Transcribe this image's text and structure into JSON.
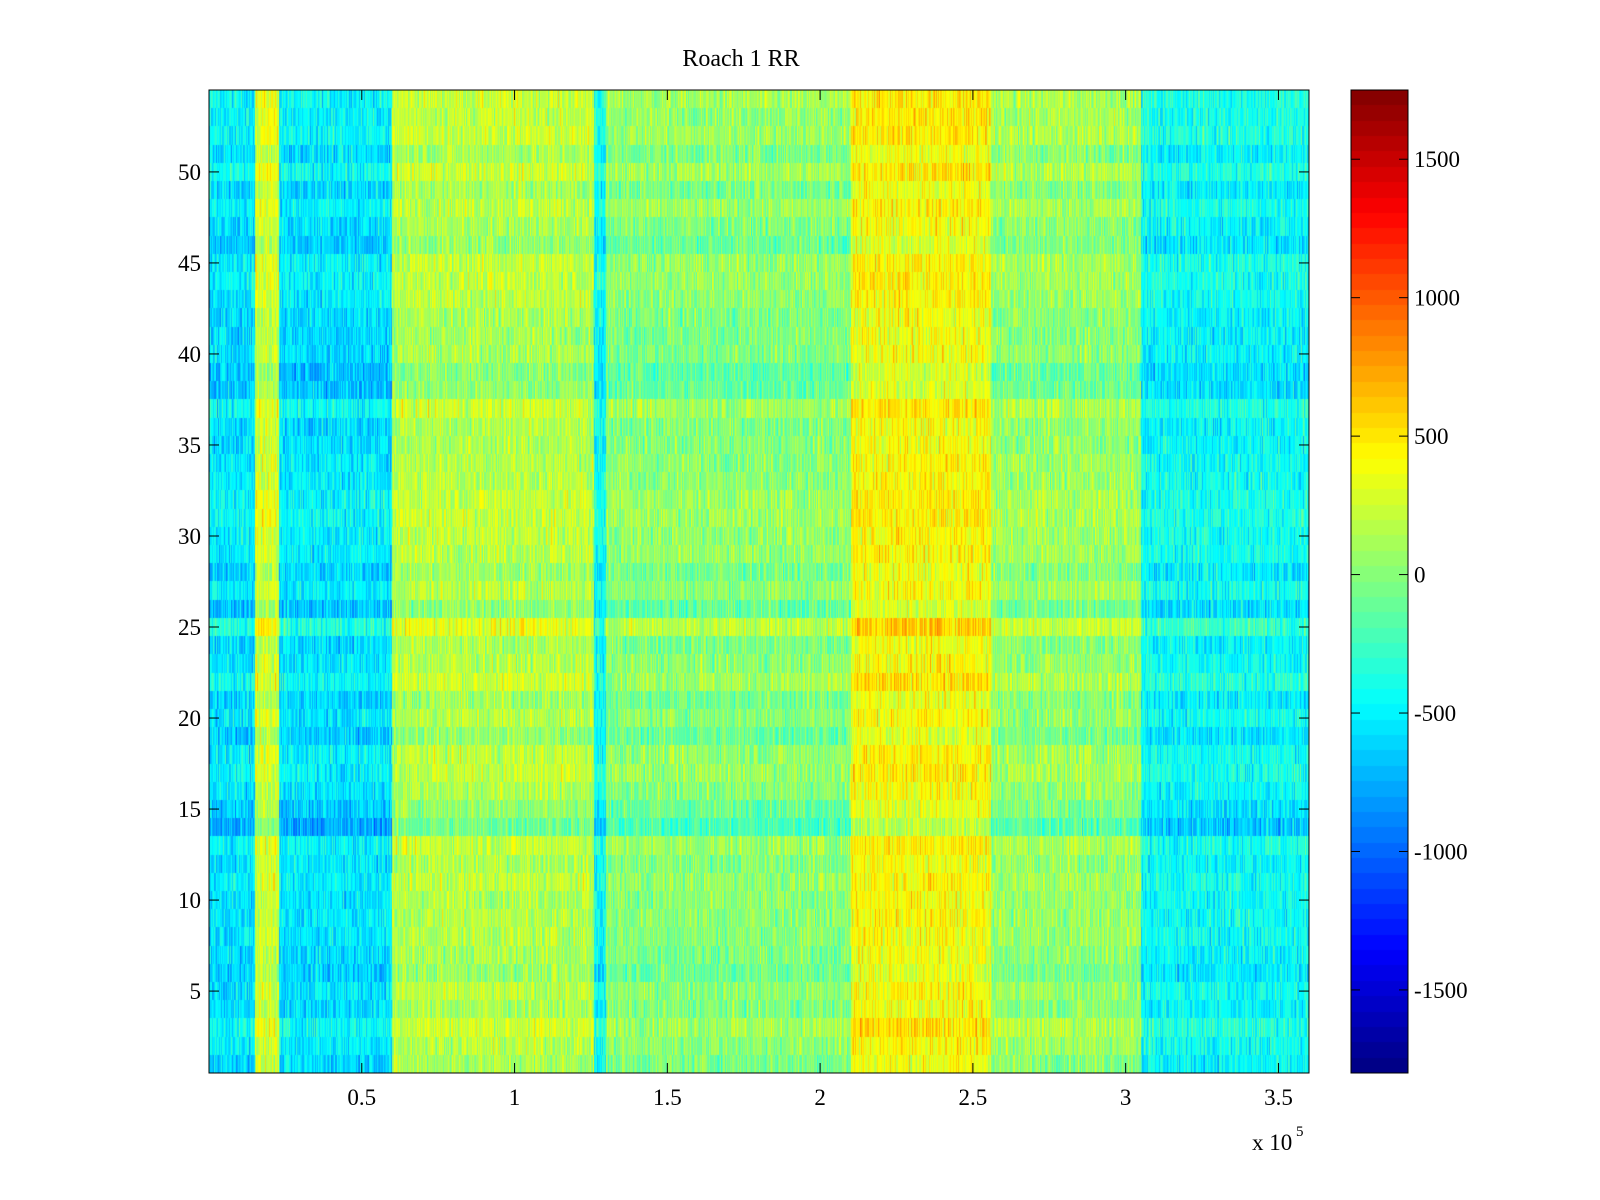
{
  "chart_data": {
    "type": "heatmap",
    "title": "Roach 1 RR",
    "xlabel": "",
    "ylabel": "",
    "x_exponent_label": "x 10",
    "x_exponent": "5",
    "xlim": [
      0,
      3.6
    ],
    "ylim": [
      0.5,
      54.5
    ],
    "x_ticks": [
      0.5,
      1,
      1.5,
      2,
      2.5,
      3,
      3.5
    ],
    "x_tick_labels": [
      "0.5",
      "1",
      "1.5",
      "2",
      "2.5",
      "3",
      "3.5"
    ],
    "y_ticks": [
      5,
      10,
      15,
      20,
      25,
      30,
      35,
      40,
      45,
      50
    ],
    "y_tick_labels": [
      "5",
      "10",
      "15",
      "20",
      "25",
      "30",
      "35",
      "40",
      "45",
      "50"
    ],
    "rows": 54,
    "colorbar": {
      "colormap": "jet",
      "clim": [
        -1800,
        1750
      ],
      "ticks": [
        -1500,
        -1000,
        -500,
        0,
        500,
        1000,
        1500
      ],
      "tick_labels": [
        "-1500",
        "-1000",
        "-500",
        "0",
        "500",
        "1000",
        "1500"
      ],
      "location": "right"
    },
    "column_bands_x": [
      {
        "x_start": 0.0,
        "x_end": 0.15,
        "description_level": -550
      },
      {
        "x_start": 0.15,
        "x_end": 0.23,
        "level": 250
      },
      {
        "x_start": 0.23,
        "x_end": 0.6,
        "level": -550
      },
      {
        "x_start": 0.6,
        "x_end": 1.26,
        "level": 150
      },
      {
        "x_start": 1.26,
        "x_end": 1.3,
        "level": -450
      },
      {
        "x_start": 1.3,
        "x_end": 2.1,
        "level": 0
      },
      {
        "x_start": 2.1,
        "x_end": 2.56,
        "level": 400
      },
      {
        "x_start": 2.56,
        "x_end": 3.05,
        "level": 50
      },
      {
        "x_start": 3.05,
        "x_end": 3.6,
        "level": -450
      }
    ],
    "grid": false
  }
}
